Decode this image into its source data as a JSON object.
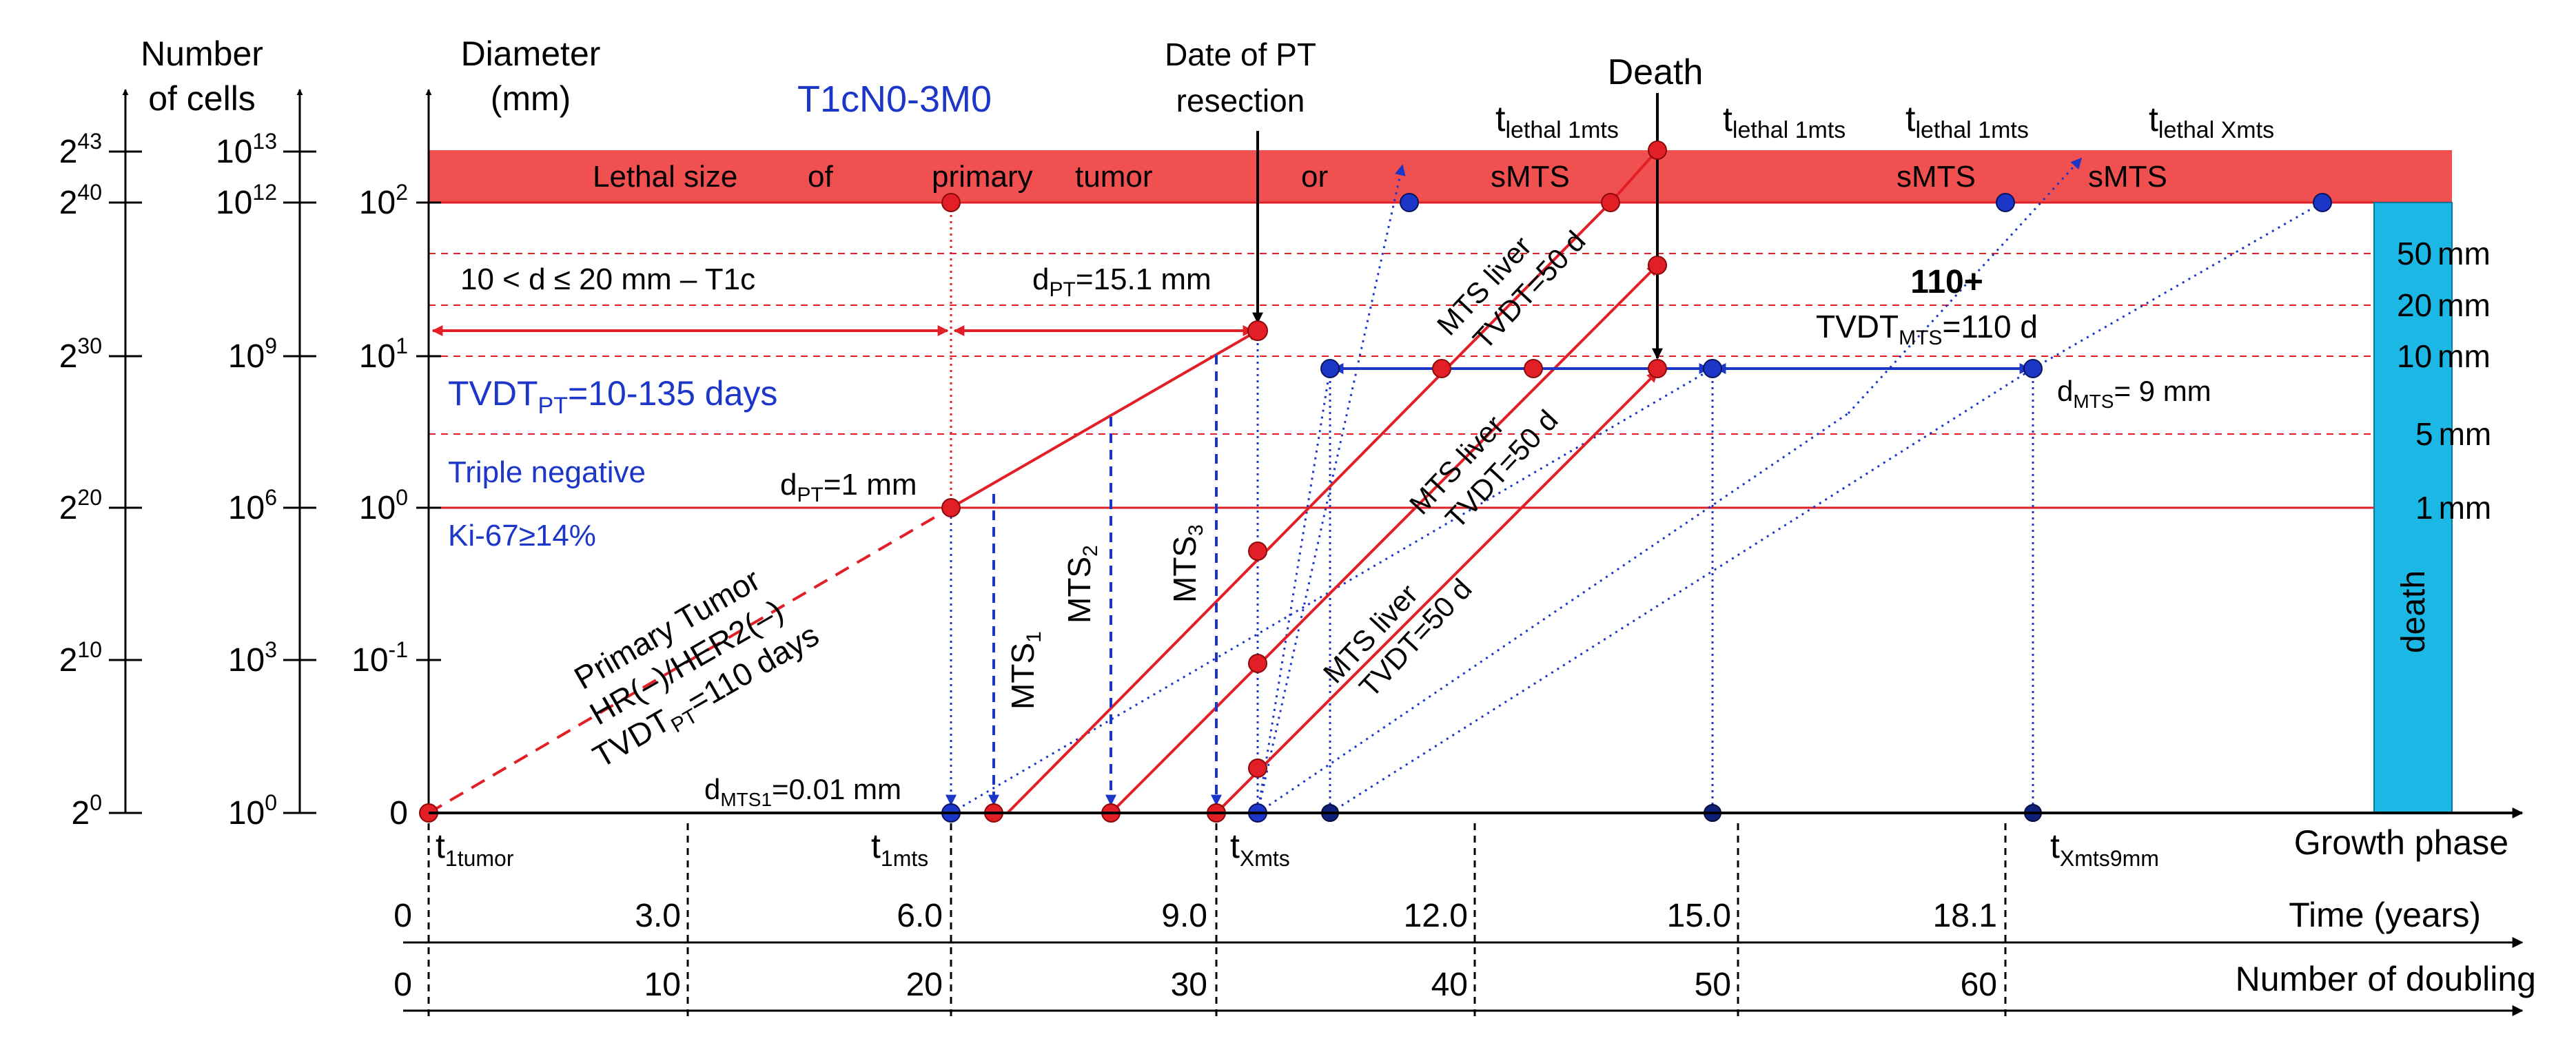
{
  "header": {
    "col_cells_line1": "Number",
    "col_cells_line2": "of cells",
    "col_diam_line1": "Diameter",
    "col_diam_line2": "(mm)",
    "stage": "T1cN0-3M0",
    "pt_resection_line1": "Date of PT",
    "pt_resection_line2": "resection",
    "death": "Death"
  },
  "scales": {
    "pow2": [
      {
        "base": "2",
        "exp": "43"
      },
      {
        "base": "2",
        "exp": "40"
      },
      {
        "base": "2",
        "exp": "30"
      },
      {
        "base": "2",
        "exp": "20"
      },
      {
        "base": "2",
        "exp": "10"
      },
      {
        "base": "2",
        "exp": "0"
      }
    ],
    "pow10_cells": [
      {
        "base": "10",
        "exp": "13"
      },
      {
        "base": "10",
        "exp": "12"
      },
      {
        "base": "10",
        "exp": "9"
      },
      {
        "base": "10",
        "exp": "6"
      },
      {
        "base": "10",
        "exp": "3"
      },
      {
        "base": "10",
        "exp": "0"
      }
    ],
    "diameter": [
      {
        "base": "10",
        "exp": "2"
      },
      {
        "base": "10",
        "exp": "1"
      },
      {
        "base": "10",
        "exp": "0"
      },
      {
        "base": "10",
        "exp": "-1"
      },
      {
        "plain": "0"
      }
    ],
    "right_mm": [
      "50",
      "20",
      "10",
      "5",
      "1"
    ],
    "mm_unit": "mm"
  },
  "lethal_band": {
    "words": [
      "Lethal size",
      "of",
      "primary",
      "tumor",
      "or",
      "sMTS",
      "sMTS",
      "sMTS"
    ]
  },
  "t_lethal": [
    {
      "t": "t",
      "sub": "lethal 1mts"
    },
    {
      "t": "t",
      "sub": "lethal 1mts"
    },
    {
      "t": "t",
      "sub": "lethal 1mts"
    },
    {
      "t": "t",
      "sub": "lethal Xmts"
    }
  ],
  "annotations": {
    "t1c_range": "10 < d ≤ 20 mm – T1c",
    "dpt_151": {
      "d": "d",
      "sub": "PT",
      "rest": "=15.1 mm"
    },
    "dpt_1": {
      "d": "d",
      "sub": "PT",
      "rest": "=1 mm"
    },
    "dmts1": {
      "d": "d",
      "sub": "MTS1",
      "rest": "=0.01 mm"
    },
    "dmts9": {
      "d": "d",
      "sub": "MTS",
      "rest": "= 9 mm"
    },
    "tvdt_pt": {
      "a": "TVDT",
      "sub": "PT",
      "b": "=10-135 days"
    },
    "triple_negative": "Triple negative",
    "ki67": "Ki-67≥14%",
    "plus110": "110+",
    "tvdt_mts": {
      "a": "TVDT",
      "sub": "MTS",
      "b": "=110 d"
    },
    "death_box": "death",
    "primary_tumor": {
      "line1": "Primary Tumor",
      "line2": "HR(–)/HER2(–)",
      "line3_a": "TVDT",
      "line3_sub": "PT",
      "line3_b": "=110 days"
    },
    "mts_labels": [
      {
        "m": "MTS",
        "sub": "1"
      },
      {
        "m": "MTS",
        "sub": "2"
      },
      {
        "m": "MTS",
        "sub": "3"
      }
    ],
    "mts_liver": [
      {
        "l1": "MTS liver",
        "l2": "TVDT=50 d"
      },
      {
        "l1": "MTS liver",
        "l2": "TVDT=50 d"
      },
      {
        "l1": "MTS liver",
        "l2": "TVDT=50 d"
      }
    ]
  },
  "axis": {
    "growth_phase": "Growth phase",
    "time_label": "Time (years)",
    "doubling_label": "Number of doubling",
    "phases": [
      {
        "t": "t",
        "sub": "1tumor"
      },
      {
        "t": "t",
        "sub": "1mts"
      },
      {
        "t": "t",
        "sub": "Xmts"
      },
      {
        "t": "t",
        "sub": "Xmts9mm"
      }
    ],
    "time_ticks": [
      "0",
      "3.0",
      "6.0",
      "9.0",
      "12.0",
      "15.0",
      "18.1"
    ],
    "doubling_ticks": [
      "0",
      "10",
      "20",
      "30",
      "40",
      "50",
      "60"
    ]
  },
  "colors": {
    "red": "#e21f26",
    "blue": "#1c36c8",
    "navy": "#10207a",
    "band": "#f15050",
    "death_box": "#1bb8e6"
  }
}
